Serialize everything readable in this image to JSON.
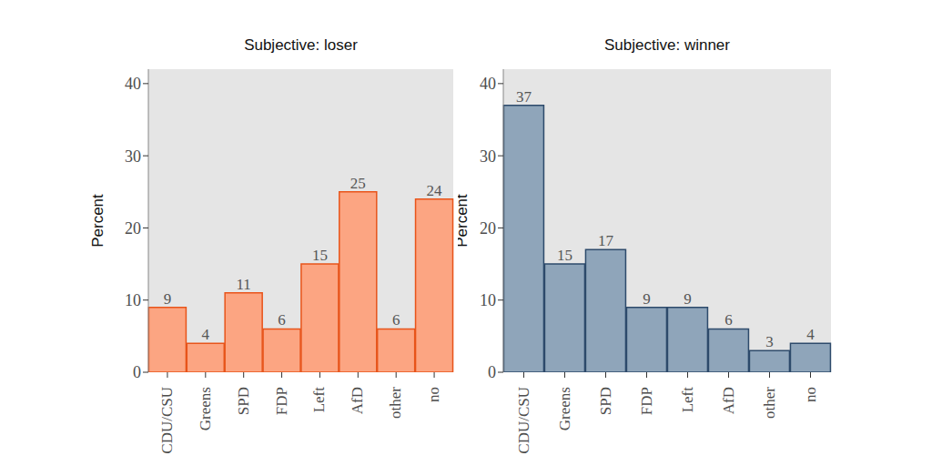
{
  "chart_data": [
    {
      "type": "bar",
      "title": "Subjective: loser",
      "y_label": "Percent",
      "categories": [
        "CDU/CSU",
        "Greens",
        "SPD",
        "FDP",
        "Left",
        "AfD",
        "other",
        "no"
      ],
      "values": [
        9,
        4,
        11,
        6,
        15,
        25,
        6,
        24
      ],
      "color": "#fca582",
      "ylim": [
        0,
        42
      ],
      "yticks": [
        0,
        10,
        20,
        30,
        40
      ],
      "grid": true,
      "data_labels": true
    },
    {
      "type": "bar",
      "title": "Subjective: winner",
      "y_label": "Percent",
      "categories": [
        "CDU/CSU",
        "Greens",
        "SPD",
        "FDP",
        "Left",
        "AfD",
        "other",
        "no"
      ],
      "values": [
        37,
        15,
        17,
        9,
        9,
        6,
        3,
        4
      ],
      "color": "#8fa5ba",
      "ylim": [
        0,
        42
      ],
      "yticks": [
        0,
        10,
        20,
        30,
        40
      ],
      "grid": true,
      "data_labels": true
    }
  ]
}
